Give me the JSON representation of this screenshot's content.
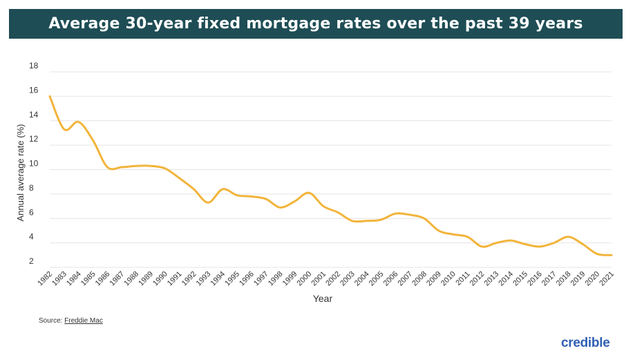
{
  "header": {
    "title": "Average 30-year fixed mortgage rates over the past 39 years"
  },
  "footer": {
    "source_prefix": "Source:",
    "source_name": "Freddie Mac",
    "logo_text": "credible"
  },
  "colors": {
    "title_bg": "#1e4d55",
    "line": "#f2b43a",
    "grid": "#e4e4e4",
    "logo": "#2f5fb3"
  },
  "chart_data": {
    "type": "line",
    "title": "Average 30-year fixed mortgage rates over the past 39 years",
    "xlabel": "Year",
    "ylabel": "Annual average rate (%)",
    "ylim": [
      2,
      18
    ],
    "yticks": [
      2,
      4,
      6,
      8,
      10,
      12,
      14,
      16,
      18
    ],
    "grid": true,
    "categories": [
      "1982",
      "1983",
      "1984",
      "1985",
      "1986",
      "1987",
      "1988",
      "1989",
      "1990",
      "1991",
      "1992",
      "1993",
      "1994",
      "1995",
      "1996",
      "1997",
      "1998",
      "1999",
      "2000",
      "2001",
      "2002",
      "2003",
      "2004",
      "2005",
      "2006",
      "2007",
      "2008",
      "2009",
      "2010",
      "2011",
      "2012",
      "2013",
      "2014",
      "2015",
      "2016",
      "2017",
      "2018",
      "2019",
      "2020",
      "2021"
    ],
    "values": [
      16.0,
      13.3,
      13.9,
      12.4,
      10.2,
      10.2,
      10.3,
      10.3,
      10.1,
      9.3,
      8.4,
      7.3,
      8.4,
      7.9,
      7.8,
      7.6,
      6.9,
      7.4,
      8.1,
      7.0,
      6.5,
      5.8,
      5.8,
      5.9,
      6.4,
      6.3,
      6.0,
      5.0,
      4.7,
      4.5,
      3.7,
      4.0,
      4.2,
      3.9,
      3.7,
      4.0,
      4.5,
      3.9,
      3.1,
      3.0
    ]
  }
}
